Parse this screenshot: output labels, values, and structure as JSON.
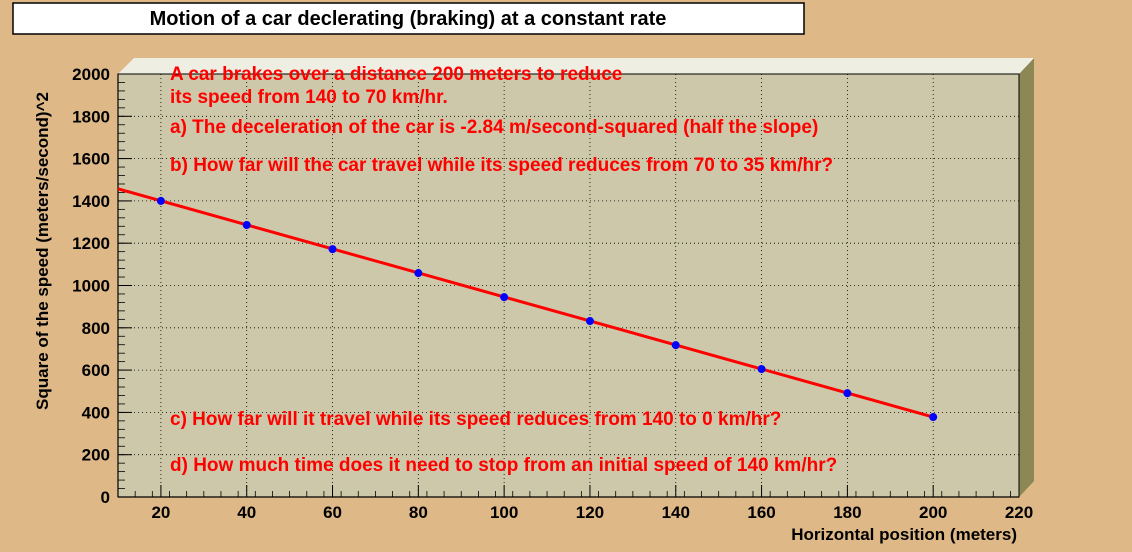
{
  "chart_data": {
    "type": "scatter",
    "title": "Motion of a car declerating (braking) at a constant rate",
    "xlabel": "Horizontal position (meters)",
    "ylabel": "Square of the speed (meters/second)^2",
    "xlim": [
      10,
      220
    ],
    "ylim": [
      0,
      2000
    ],
    "xticks": [
      "20",
      "40",
      "60",
      "80",
      "100",
      "120",
      "140",
      "160",
      "180",
      "200",
      "220"
    ],
    "yticks": [
      "0",
      "200",
      "400",
      "600",
      "800",
      "1000",
      "1200",
      "1400",
      "1600",
      "1800",
      "2000"
    ],
    "grid": true,
    "series": [
      {
        "points": [
          {
            "x": 20,
            "y": 1400
          },
          {
            "x": 40,
            "y": 1286
          },
          {
            "x": 60,
            "y": 1172
          },
          {
            "x": 80,
            "y": 1059
          },
          {
            "x": 100,
            "y": 945
          },
          {
            "x": 120,
            "y": 832
          },
          {
            "x": 140,
            "y": 718
          },
          {
            "x": 160,
            "y": 605
          },
          {
            "x": 180,
            "y": 491
          },
          {
            "x": 200,
            "y": 378
          }
        ],
        "color": "#0000ff"
      }
    ],
    "fit_line": {
      "x": [
        10,
        200
      ],
      "y": [
        1457,
        378
      ],
      "color": "#ff0000"
    },
    "annotations": [
      "A car brakes over a distance 200 meters to reduce",
      "its speed from 140 to 70 km/hr.",
      "a) The deceleration of the car is -2.84 m/second-squared (half the slope)",
      "b) How far will the car travel while its speed reduces from 70 to 35 km/hr?",
      "c) How far will it travel while its speed reduces from 140 to 0 km/hr?",
      "d) How much time does it need to stop from an initial speed of 140 km/hr?"
    ]
  }
}
